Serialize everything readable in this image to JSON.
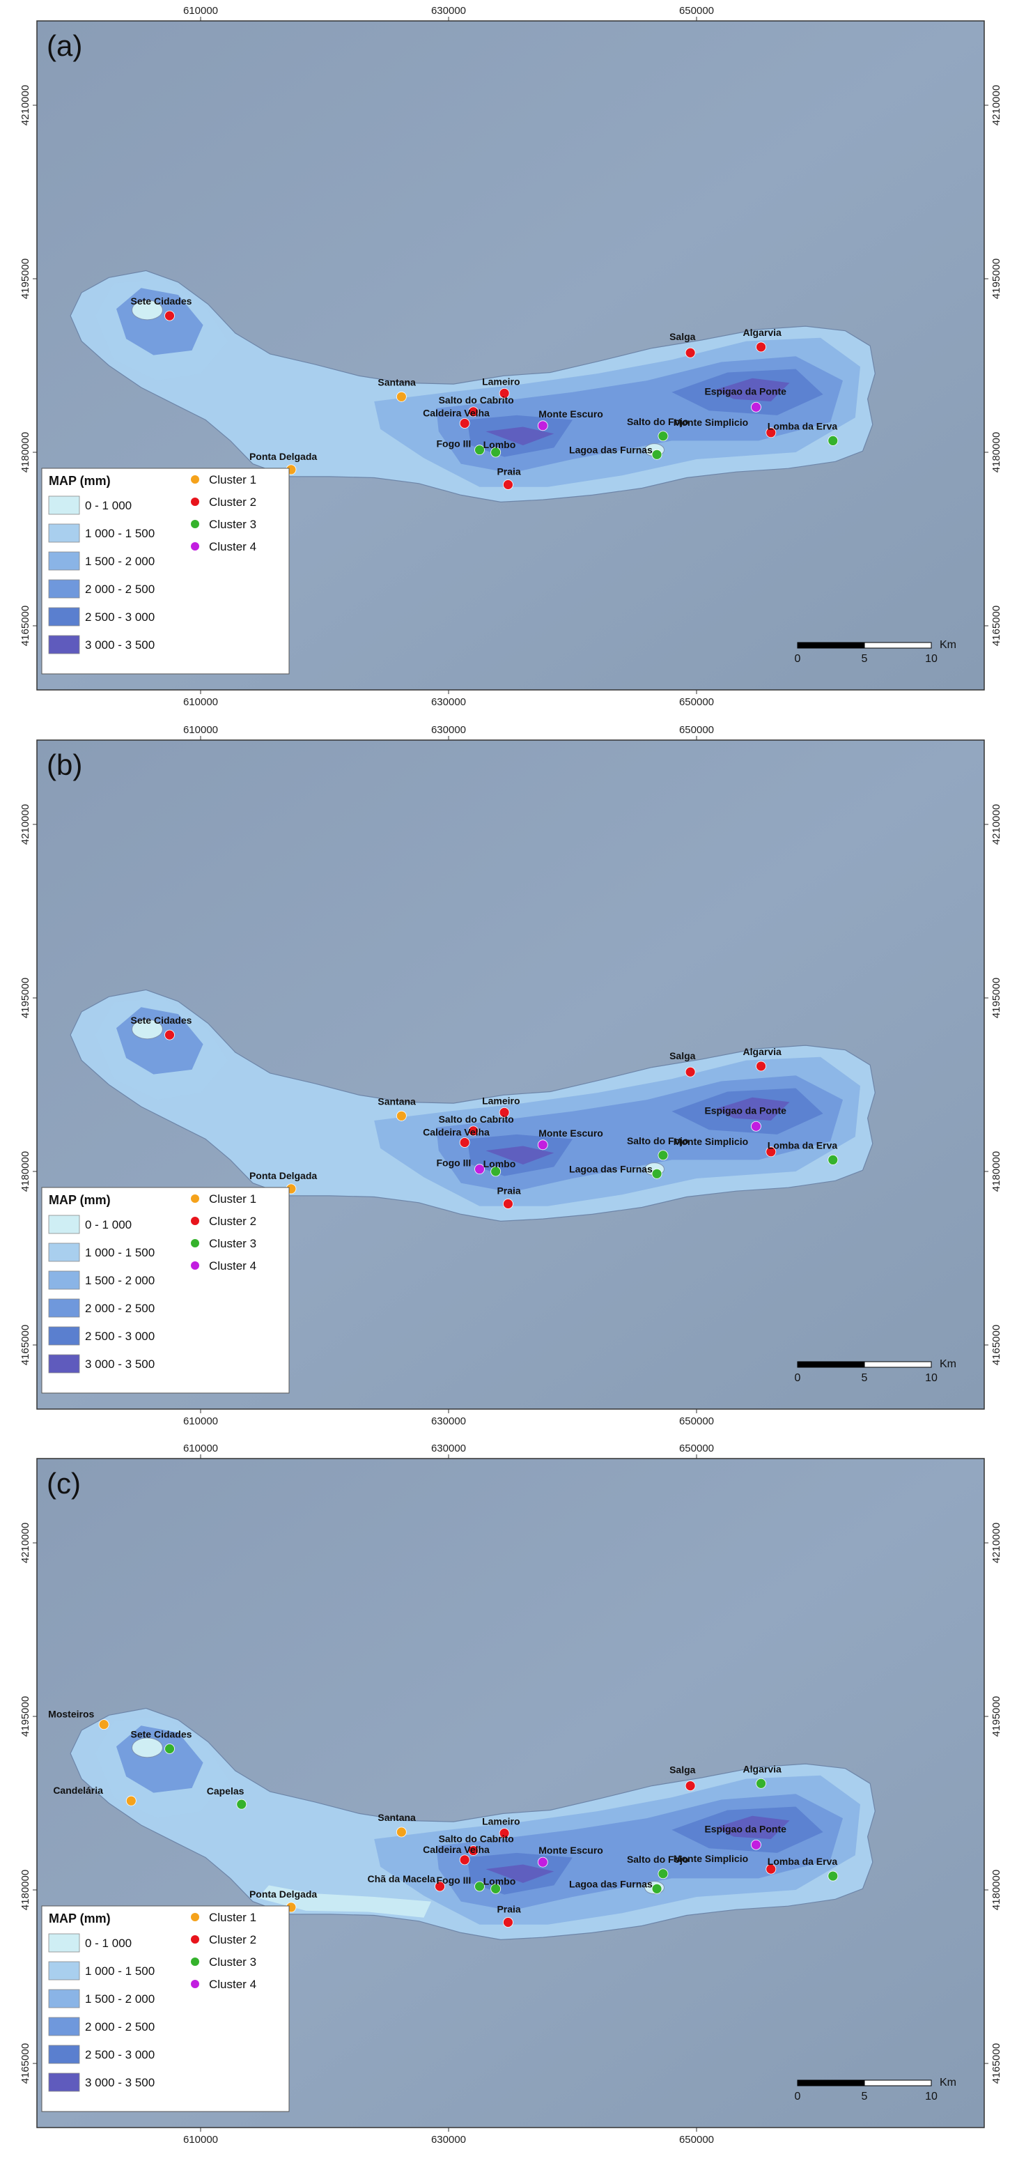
{
  "shared": {
    "x_ticks": [
      "610000",
      "630000",
      "650000"
    ],
    "y_ticks": [
      "4210000",
      "4195000",
      "4180000",
      "4165000"
    ],
    "legend": {
      "title": "MAP (mm)",
      "classes": [
        {
          "label": "0 - 1 000",
          "color": "#cfeef4"
        },
        {
          "label": "1 000 - 1 500",
          "color": "#a9cfee"
        },
        {
          "label": "1 500 - 2 000",
          "color": "#8ab4e6"
        },
        {
          "label": "2 000 - 2 500",
          "color": "#6f98dc"
        },
        {
          "label": "2 500 - 3 000",
          "color": "#5a7fcf"
        },
        {
          "label": "3 000 - 3 500",
          "color": "#5f5bbd"
        }
      ],
      "clusters": [
        {
          "label": "Cluster 1",
          "color": "#f5a21b"
        },
        {
          "label": "Cluster 2",
          "color": "#e8141c"
        },
        {
          "label": "Cluster 3",
          "color": "#35b22c"
        },
        {
          "label": "Cluster 4",
          "color": "#c21ee0"
        }
      ]
    },
    "scale": {
      "labels": [
        "0",
        "5",
        "10"
      ],
      "unit": "Km"
    }
  },
  "panels": [
    {
      "label": "(a)",
      "stations": [
        {
          "name": "Sete Cidades",
          "cluster": 2,
          "x": 607500,
          "y": 4191800
        },
        {
          "name": "Santana",
          "cluster": 1,
          "x": 626200,
          "y": 4184800
        },
        {
          "name": "Lameiro",
          "cluster": 2,
          "x": 634500,
          "y": 4185100
        },
        {
          "name": "Salto do Cabrito",
          "cluster": 2,
          "x": 632000,
          "y": 4183500
        },
        {
          "name": "Caldeira Velha",
          "cluster": 2,
          "x": 631300,
          "y": 4182500
        },
        {
          "name": "Monte Escuro",
          "cluster": 4,
          "x": 637600,
          "y": 4182300
        },
        {
          "name": "Fogo III",
          "cluster": 3,
          "x": 632500,
          "y": 4180200
        },
        {
          "name": "Lombo",
          "cluster": 3,
          "x": 633800,
          "y": 4180000
        },
        {
          "name": "Praia",
          "cluster": 2,
          "x": 634800,
          "y": 4177200
        },
        {
          "name": "Ponta Delgada",
          "cluster": 1,
          "x": 617300,
          "y": 4178500
        },
        {
          "name": "Salga",
          "cluster": 2,
          "x": 649500,
          "y": 4188600
        },
        {
          "name": "Algarvia",
          "cluster": 2,
          "x": 655200,
          "y": 4189100
        },
        {
          "name": "Espigao da Ponte",
          "cluster": 4,
          "x": 654800,
          "y": 4183900
        },
        {
          "name": "Salto do Fojo",
          "cluster": 3,
          "x": 647300,
          "y": 4181400
        },
        {
          "name": "Lagoa das Furnas",
          "cluster": 3,
          "x": 646800,
          "y": 4179800
        },
        {
          "name": "Monte Simplicio",
          "cluster": 2,
          "x": 656000,
          "y": 4181700
        },
        {
          "name": "Lomba da Erva",
          "cluster": 3,
          "x": 661000,
          "y": 4181000
        }
      ]
    },
    {
      "label": "(b)",
      "stations": [
        {
          "name": "Sete Cidades",
          "cluster": 2,
          "x": 607500,
          "y": 4191800
        },
        {
          "name": "Santana",
          "cluster": 1,
          "x": 626200,
          "y": 4184800
        },
        {
          "name": "Lameiro",
          "cluster": 2,
          "x": 634500,
          "y": 4185100
        },
        {
          "name": "Salto do Cabrito",
          "cluster": 2,
          "x": 632000,
          "y": 4183500
        },
        {
          "name": "Caldeira Velha",
          "cluster": 2,
          "x": 631300,
          "y": 4182500
        },
        {
          "name": "Monte Escuro",
          "cluster": 4,
          "x": 637600,
          "y": 4182300
        },
        {
          "name": "Fogo III",
          "cluster": 4,
          "x": 632500,
          "y": 4180200
        },
        {
          "name": "Lombo",
          "cluster": 3,
          "x": 633800,
          "y": 4180000
        },
        {
          "name": "Praia",
          "cluster": 2,
          "x": 634800,
          "y": 4177200
        },
        {
          "name": "Ponta Delgada",
          "cluster": 1,
          "x": 617300,
          "y": 4178500
        },
        {
          "name": "Salga",
          "cluster": 2,
          "x": 649500,
          "y": 4188600
        },
        {
          "name": "Algarvia",
          "cluster": 2,
          "x": 655200,
          "y": 4189100
        },
        {
          "name": "Espigao da Ponte",
          "cluster": 4,
          "x": 654800,
          "y": 4183900
        },
        {
          "name": "Salto do Fojo",
          "cluster": 3,
          "x": 647300,
          "y": 4181400
        },
        {
          "name": "Lagoa das Furnas",
          "cluster": 3,
          "x": 646800,
          "y": 4179800
        },
        {
          "name": "Monte Simplicio",
          "cluster": 2,
          "x": 656000,
          "y": 4181700
        },
        {
          "name": "Lomba da Erva",
          "cluster": 3,
          "x": 661000,
          "y": 4181000
        }
      ]
    },
    {
      "label": "(c)",
      "stations": [
        {
          "name": "Mosteiros",
          "cluster": 1,
          "x": 602200,
          "y": 4194300
        },
        {
          "name": "Sete Cidades",
          "cluster": 3,
          "x": 607500,
          "y": 4192200
        },
        {
          "name": "Candelária",
          "cluster": 1,
          "x": 604400,
          "y": 4187700
        },
        {
          "name": "Capelas",
          "cluster": 3,
          "x": 613300,
          "y": 4187400
        },
        {
          "name": "Santana",
          "cluster": 1,
          "x": 626200,
          "y": 4185000
        },
        {
          "name": "Lameiro",
          "cluster": 2,
          "x": 634500,
          "y": 4184900
        },
        {
          "name": "Salto do Cabrito",
          "cluster": 2,
          "x": 632000,
          "y": 4183400
        },
        {
          "name": "Caldeira Velha",
          "cluster": 2,
          "x": 631300,
          "y": 4182600
        },
        {
          "name": "Monte Escuro",
          "cluster": 4,
          "x": 637600,
          "y": 4182400
        },
        {
          "name": "Chã da Macela",
          "cluster": 2,
          "x": 629300,
          "y": 4180300
        },
        {
          "name": "Fogo III",
          "cluster": 3,
          "x": 632500,
          "y": 4180300
        },
        {
          "name": "Lombo",
          "cluster": 3,
          "x": 633800,
          "y": 4180100
        },
        {
          "name": "Praia",
          "cluster": 2,
          "x": 634800,
          "y": 4177200
        },
        {
          "name": "Ponta Delgada",
          "cluster": 1,
          "x": 617300,
          "y": 4178500
        },
        {
          "name": "Salga",
          "cluster": 2,
          "x": 649500,
          "y": 4189000
        },
        {
          "name": "Algarvia",
          "cluster": 3,
          "x": 655200,
          "y": 4189200
        },
        {
          "name": "Espigao da Ponte",
          "cluster": 4,
          "x": 654800,
          "y": 4183900
        },
        {
          "name": "Salto do Fojo",
          "cluster": 3,
          "x": 647300,
          "y": 4181400
        },
        {
          "name": "Lagoa das Furnas",
          "cluster": 3,
          "x": 646800,
          "y": 4180100
        },
        {
          "name": "Monte Simplicio",
          "cluster": 2,
          "x": 656000,
          "y": 4181800
        },
        {
          "name": "Lomba da Erva",
          "cluster": 3,
          "x": 661000,
          "y": 4181200
        }
      ]
    }
  ]
}
